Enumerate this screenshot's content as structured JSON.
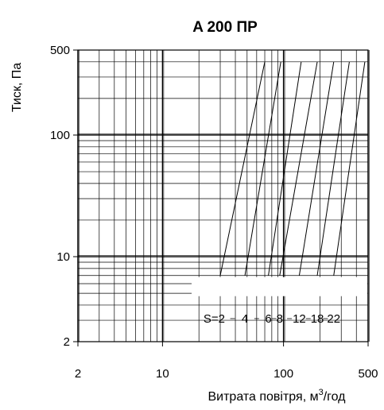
{
  "chart_data": {
    "type": "line",
    "title": "A 200 ПР",
    "xlabel_main": "Витрата повітря, м",
    "xlabel_sup": "3",
    "xlabel_tail": "/год",
    "ylabel": "Тиск, Па",
    "x_scale": "log",
    "y_scale": "log",
    "xlim": [
      2,
      500
    ],
    "ylim": [
      2,
      500
    ],
    "x_ticks": [
      2,
      10,
      100,
      500
    ],
    "x_tick_labels": [
      "2",
      "10",
      "100",
      "500"
    ],
    "y_ticks": [
      2,
      10,
      100,
      500
    ],
    "y_tick_labels": [
      "2",
      "10",
      "100",
      "500"
    ],
    "grid": true,
    "series_label_prefix": "S=",
    "series": [
      {
        "label": "2",
        "x": [
          30,
          70
        ],
        "y": [
          7,
          400
        ]
      },
      {
        "label": "4",
        "x": [
          48,
          95
        ],
        "y": [
          7,
          400
        ]
      },
      {
        "label": "6",
        "x": [
          75,
          140
        ],
        "y": [
          7,
          400
        ]
      },
      {
        "label": "8",
        "x": [
          93,
          190
        ],
        "y": [
          7,
          400
        ]
      },
      {
        "label": "12",
        "x": [
          135,
          260
        ],
        "y": [
          7,
          400
        ]
      },
      {
        "label": "18",
        "x": [
          190,
          350
        ],
        "y": [
          7,
          400
        ]
      },
      {
        "label": "22",
        "x": [
          260,
          470
        ],
        "y": [
          7,
          400
        ]
      }
    ]
  }
}
